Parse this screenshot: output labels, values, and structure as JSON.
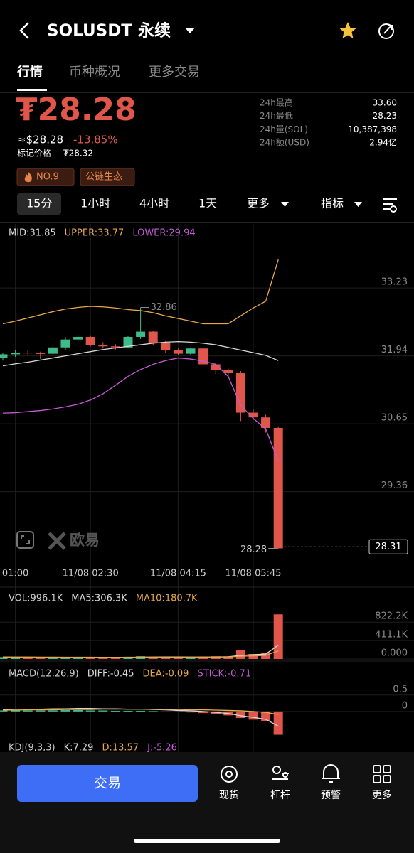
{
  "header": {
    "title": "SOLUSDT 永续"
  },
  "tabs": [
    "行情",
    "币种概况",
    "更多交易"
  ],
  "price": {
    "last": "₮28.28",
    "usd": "≈$28.28",
    "change": "-13.85%",
    "mark_label": "标记价格",
    "mark": "₮28.32",
    "tags": [
      "NO.9",
      "公链生态"
    ]
  },
  "stats": [
    {
      "label": "24h最高",
      "value": "33.60"
    },
    {
      "label": "24h最低",
      "value": "28.23"
    },
    {
      "label": "24h量(SOL)",
      "value": "10,387,398"
    },
    {
      "label": "24h额(USD)",
      "value": "2.94亿"
    }
  ],
  "intervals": [
    "15分",
    "1小时",
    "4小时",
    "1天",
    "更多",
    "指标"
  ],
  "watermark": "欧易",
  "chart_data": [
    {
      "type": "candlestick",
      "categories": [
        null,
        "01:00",
        null,
        null,
        null,
        null,
        null,
        "11/08 02:30",
        null,
        null,
        null,
        null,
        null,
        null,
        "11/08 04:15",
        null,
        null,
        null,
        null,
        null,
        "11/08 05:45",
        null,
        null
      ],
      "open": [
        31.9,
        31.97,
        32.0,
        31.99,
        31.98,
        32.1,
        32.25,
        32.3,
        32.15,
        32.12,
        32.1,
        32.3,
        32.4,
        32.18,
        32.05,
        31.98,
        32.08,
        31.78,
        31.67,
        31.61,
        30.86,
        30.77,
        30.57
      ],
      "high": [
        32.0,
        32.05,
        32.05,
        32.02,
        32.15,
        32.3,
        32.35,
        32.33,
        32.2,
        32.16,
        32.32,
        32.86,
        32.42,
        32.22,
        32.08,
        32.1,
        32.1,
        31.8,
        31.7,
        31.65,
        30.92,
        30.82,
        30.6
      ],
      "low": [
        31.85,
        31.92,
        31.95,
        31.88,
        31.95,
        32.05,
        32.2,
        32.12,
        32.08,
        32.06,
        32.08,
        32.26,
        32.15,
        32.0,
        31.95,
        31.96,
        31.75,
        31.6,
        31.55,
        30.7,
        30.72,
        30.48,
        28.28
      ],
      "close": [
        31.97,
        32.0,
        31.99,
        31.98,
        32.1,
        32.25,
        32.3,
        32.15,
        32.12,
        32.1,
        32.3,
        32.4,
        32.18,
        32.05,
        31.98,
        32.08,
        31.78,
        31.67,
        31.61,
        30.86,
        30.77,
        30.57,
        28.28
      ],
      "up_color": "#3dbb8a",
      "down_color": "#e0564b",
      "series": [
        {
          "name": "MID:31.85",
          "color": "#d8d8d8",
          "values": [
            31.75,
            31.79,
            31.82,
            31.86,
            31.9,
            31.94,
            31.98,
            32.02,
            32.06,
            32.09,
            32.12,
            32.15,
            32.18,
            32.2,
            32.21,
            32.2,
            32.18,
            32.15,
            32.1,
            32.05,
            32.0,
            31.95,
            31.85
          ]
        },
        {
          "name": "UPPER:33.77",
          "color": "#e8a94a",
          "values": [
            32.55,
            32.6,
            32.66,
            32.72,
            32.78,
            32.83,
            32.86,
            32.88,
            32.87,
            32.85,
            32.82,
            32.8,
            32.76,
            32.7,
            32.65,
            32.6,
            32.55,
            32.55,
            32.55,
            32.7,
            32.85,
            32.98,
            33.77
          ]
        },
        {
          "name": "LOWER:29.94",
          "color": "#c55ad6",
          "values": [
            30.85,
            30.86,
            30.88,
            30.9,
            30.93,
            30.97,
            31.02,
            31.1,
            31.22,
            31.38,
            31.55,
            31.68,
            31.78,
            31.85,
            31.9,
            31.88,
            31.84,
            31.78,
            31.55,
            31.0,
            30.75,
            30.55,
            29.94
          ]
        }
      ],
      "high_label": 32.86,
      "low_label": 28.28,
      "last_price": 28.31,
      "ylim": [
        28.03,
        34.11
      ],
      "yticks": [
        33.23,
        31.94,
        30.65,
        29.36
      ],
      "grid": true
    },
    {
      "type": "volume",
      "title": "VOL:996.1K",
      "values": [
        42000,
        35000,
        30000,
        38000,
        45000,
        40000,
        36000,
        30000,
        32000,
        34000,
        50000,
        60000,
        42000,
        38000,
        40000,
        35000,
        55000,
        60000,
        58000,
        190000,
        110000,
        130000,
        996100
      ],
      "series": [
        {
          "name": "MA5:306.3K",
          "color": "#d8d8d8",
          "values": [
            40000,
            40000,
            39000,
            38000,
            38000,
            38000,
            38000,
            38000,
            36000,
            34000,
            36000,
            41000,
            44000,
            45000,
            46000,
            43000,
            42000,
            46000,
            50000,
            80000,
            95000,
            110000,
            306300
          ]
        },
        {
          "name": "MA10:180.7K",
          "color": "#e8a94a",
          "values": [
            45000,
            44000,
            43000,
            42000,
            41000,
            40000,
            40000,
            39000,
            38000,
            38000,
            38000,
            39000,
            40000,
            40000,
            41000,
            41000,
            42000,
            44000,
            46000,
            62000,
            70000,
            80000,
            180700
          ]
        }
      ],
      "ylim": [
        0,
        1000000
      ],
      "yticks": [
        {
          "value": 822200,
          "label": "822.2K"
        },
        {
          "value": 411100,
          "label": "411.1K"
        },
        {
          "value": 0,
          "label": "0.000"
        }
      ]
    },
    {
      "type": "macd",
      "title": "MACD(12,26,9)",
      "series": [
        {
          "name": "DIFF:-0.45",
          "color": "#d8d8d8",
          "values": [
            0.06,
            0.07,
            0.07,
            0.07,
            0.08,
            0.08,
            0.09,
            0.09,
            0.08,
            0.08,
            0.07,
            0.07,
            0.06,
            0.05,
            0.03,
            0.02,
            0.0,
            -0.03,
            -0.06,
            -0.13,
            -0.18,
            -0.24,
            -0.45
          ]
        },
        {
          "name": "DEA:-0.09",
          "color": "#e8a94a",
          "values": [
            0.04,
            0.04,
            0.05,
            0.05,
            0.05,
            0.06,
            0.06,
            0.06,
            0.07,
            0.07,
            0.07,
            0.07,
            0.07,
            0.06,
            0.06,
            0.05,
            0.05,
            0.04,
            0.03,
            0.02,
            0.0,
            -0.03,
            -0.09
          ]
        },
        {
          "name": "STICK:-0.71",
          "color": "#c55ad6",
          "values": [
            0.03,
            0.03,
            0.03,
            0.03,
            0.03,
            0.04,
            0.04,
            0.03,
            0.03,
            0.02,
            0.02,
            0.02,
            0.01,
            -0.01,
            -0.02,
            -0.03,
            -0.05,
            -0.08,
            -0.12,
            -0.2,
            -0.25,
            -0.3,
            -0.71
          ]
        }
      ],
      "ylim": [
        -0.85,
        0.93
      ],
      "yticks": [
        0.5,
        0
      ]
    },
    {
      "type": "kdj",
      "title": "KDJ(9,3,3)",
      "series": [
        {
          "name": "K:7.29",
          "color": "#d8d8d8"
        },
        {
          "name": "D:13.57",
          "color": "#e8a94a"
        },
        {
          "name": "J:-5.26",
          "color": "#c55ad6"
        }
      ]
    }
  ],
  "nav": {
    "trade": "交易",
    "items": [
      "现货",
      "杠杆",
      "预警",
      "更多"
    ]
  }
}
